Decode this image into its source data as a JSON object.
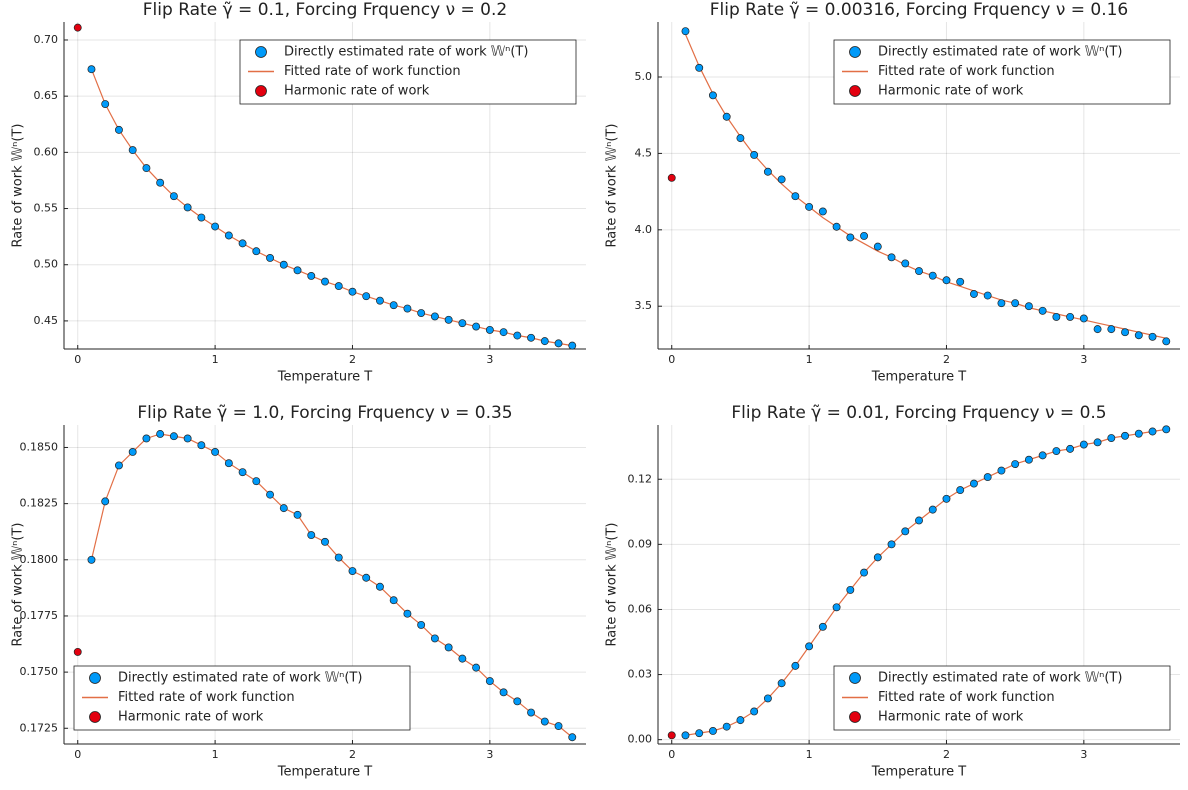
{
  "chart_data": [
    {
      "type": "scatter",
      "title": "Flip Rate γ̃ = 0.1, Forcing Frquency ν = 0.2",
      "xlabel": "Temperature T",
      "ylabel": "Rate of work 𝕎ⁿ(T)",
      "x": [
        0.1,
        0.2,
        0.3,
        0.4,
        0.5,
        0.6,
        0.7,
        0.8,
        0.9,
        1.0,
        1.1,
        1.2,
        1.3,
        1.4,
        1.5,
        1.6,
        1.7,
        1.8,
        1.9,
        2.0,
        2.1,
        2.2,
        2.3,
        2.4,
        2.5,
        2.6,
        2.7,
        2.8,
        2.9,
        3.0,
        3.1,
        3.2,
        3.3,
        3.4,
        3.5,
        3.6
      ],
      "series": [
        {
          "name": "Directly estimated rate of work 𝕎ⁿ(T)",
          "type": "scatter",
          "color": "#009af9",
          "values": [
            0.674,
            0.643,
            0.62,
            0.602,
            0.586,
            0.573,
            0.561,
            0.551,
            0.542,
            0.534,
            0.526,
            0.519,
            0.512,
            0.506,
            0.5,
            0.495,
            0.49,
            0.485,
            0.481,
            0.476,
            0.472,
            0.468,
            0.464,
            0.461,
            0.457,
            0.454,
            0.451,
            0.448,
            0.445,
            0.442,
            0.44,
            0.437,
            0.435,
            0.432,
            0.43,
            0.428
          ]
        },
        {
          "name": "Fitted rate of work function",
          "type": "line",
          "color": "#e26f46",
          "values": [
            0.674,
            0.643,
            0.62,
            0.602,
            0.586,
            0.573,
            0.561,
            0.551,
            0.542,
            0.534,
            0.526,
            0.519,
            0.512,
            0.506,
            0.5,
            0.495,
            0.49,
            0.485,
            0.481,
            0.476,
            0.472,
            0.468,
            0.464,
            0.461,
            0.457,
            0.454,
            0.451,
            0.448,
            0.445,
            0.442,
            0.44,
            0.437,
            0.435,
            0.432,
            0.43,
            0.428
          ]
        },
        {
          "name": "Harmonic rate of work",
          "type": "scatter",
          "color": "#e3000f",
          "x": [
            0
          ],
          "values": [
            0.711
          ]
        }
      ],
      "xlim": [
        -0.1,
        3.7
      ],
      "xticks": [
        0,
        1,
        2,
        3
      ],
      "ylim": [
        0.425,
        0.716
      ],
      "yticks": [
        0.45,
        {
          "value": 0.5,
          "label": "0.50"
        },
        0.55,
        {
          "value": 0.6,
          "label": "0.60"
        },
        0.65,
        {
          "value": 0.7,
          "label": "0.70"
        }
      ],
      "grid": true,
      "legend": "top-right"
    },
    {
      "type": "scatter",
      "title": "Flip Rate γ̃ = 0.00316, Forcing Frquency ν = 0.16",
      "xlabel": "Temperature T",
      "ylabel": "Rate of work 𝕎ⁿ(T)",
      "x": [
        0.1,
        0.2,
        0.3,
        0.4,
        0.5,
        0.6,
        0.7,
        0.8,
        0.9,
        1.0,
        1.1,
        1.2,
        1.3,
        1.4,
        1.5,
        1.6,
        1.7,
        1.8,
        1.9,
        2.0,
        2.1,
        2.2,
        2.3,
        2.4,
        2.5,
        2.6,
        2.7,
        2.8,
        2.9,
        3.0,
        3.1,
        3.2,
        3.3,
        3.4,
        3.5,
        3.6
      ],
      "series": [
        {
          "name": "Directly estimated rate of work 𝕎ⁿ(T)",
          "type": "scatter",
          "color": "#009af9",
          "values": [
            5.3,
            5.06,
            4.88,
            4.74,
            4.6,
            4.49,
            4.38,
            4.33,
            4.22,
            4.15,
            4.12,
            4.02,
            3.95,
            3.96,
            3.89,
            3.82,
            3.78,
            3.73,
            3.7,
            3.67,
            3.66,
            3.58,
            3.57,
            3.52,
            3.52,
            3.5,
            3.47,
            3.43,
            3.43,
            3.42,
            3.35,
            3.35,
            3.33,
            3.31,
            3.3,
            3.27
          ]
        },
        {
          "name": "Fitted rate of work function",
          "type": "line",
          "color": "#e26f46",
          "values": [
            5.28,
            5.07,
            4.89,
            4.74,
            4.61,
            4.49,
            4.39,
            4.3,
            4.22,
            4.15,
            4.08,
            4.02,
            3.96,
            3.91,
            3.86,
            3.82,
            3.77,
            3.73,
            3.7,
            3.66,
            3.63,
            3.6,
            3.57,
            3.54,
            3.52,
            3.49,
            3.47,
            3.45,
            3.43,
            3.41,
            3.39,
            3.37,
            3.35,
            3.33,
            3.31,
            3.29
          ]
        },
        {
          "name": "Harmonic rate of work",
          "type": "scatter",
          "color": "#e3000f",
          "x": [
            0
          ],
          "values": [
            4.34
          ]
        }
      ],
      "xlim": [
        -0.1,
        3.7
      ],
      "xticks": [
        0,
        1,
        2,
        3
      ],
      "ylim": [
        3.22,
        5.36
      ],
      "yticks": [
        3.5,
        {
          "value": 4,
          "label": "4.0"
        },
        4.5,
        {
          "value": 5,
          "label": "5.0"
        }
      ],
      "grid": true,
      "legend": "top-right"
    },
    {
      "type": "scatter",
      "title": "Flip Rate γ̃ = 1.0, Forcing Frquency ν = 0.35",
      "xlabel": "Temperature T",
      "ylabel": "Rate of work 𝕎ⁿ(T)",
      "x": [
        0.1,
        0.2,
        0.3,
        0.4,
        0.5,
        0.6,
        0.7,
        0.8,
        0.9,
        1.0,
        1.1,
        1.2,
        1.3,
        1.4,
        1.5,
        1.6,
        1.7,
        1.8,
        1.9,
        2.0,
        2.1,
        2.2,
        2.3,
        2.4,
        2.5,
        2.6,
        2.7,
        2.8,
        2.9,
        3.0,
        3.1,
        3.2,
        3.3,
        3.4,
        3.5,
        3.6
      ],
      "series": [
        {
          "name": "Directly estimated rate of work 𝕎ⁿ(T)",
          "type": "scatter",
          "color": "#009af9",
          "values": [
            0.18,
            0.1826,
            0.1842,
            0.1848,
            0.1854,
            0.1856,
            0.1855,
            0.1854,
            0.1851,
            0.1848,
            0.1843,
            0.1839,
            0.1835,
            0.1829,
            0.1823,
            0.182,
            0.1811,
            0.1808,
            0.1801,
            0.1795,
            0.1792,
            0.1788,
            0.1782,
            0.1776,
            0.1771,
            0.1765,
            0.1761,
            0.1756,
            0.1752,
            0.1746,
            0.1741,
            0.1737,
            0.1732,
            0.1728,
            0.1726,
            0.1721
          ]
        },
        {
          "name": "Fitted rate of work function",
          "type": "line",
          "color": "#e26f46",
          "values": [
            0.18,
            0.1826,
            0.1842,
            0.1848,
            0.1854,
            0.1856,
            0.1855,
            0.1854,
            0.1851,
            0.1848,
            0.1843,
            0.1839,
            0.1835,
            0.1829,
            0.1823,
            0.182,
            0.1811,
            0.1808,
            0.1801,
            0.1795,
            0.1792,
            0.1788,
            0.1782,
            0.1776,
            0.1771,
            0.1765,
            0.1761,
            0.1756,
            0.1752,
            0.1746,
            0.1741,
            0.1737,
            0.1732,
            0.1728,
            0.1726,
            0.1721
          ]
        },
        {
          "name": "Harmonic rate of work",
          "type": "scatter",
          "color": "#e3000f",
          "x": [
            0
          ],
          "values": [
            0.1759
          ]
        }
      ],
      "xlim": [
        -0.1,
        3.7
      ],
      "xticks": [
        0,
        1,
        2,
        3
      ],
      "ylim": [
        0.1718,
        0.186
      ],
      "yticks": [
        0.1725,
        {
          "value": 0.175,
          "label": "0.1750"
        },
        0.1775,
        {
          "value": 0.18,
          "label": "0.1800"
        },
        0.1825,
        {
          "value": 0.185,
          "label": "0.1850"
        }
      ],
      "grid": true,
      "legend": "bottom-left"
    },
    {
      "type": "scatter",
      "title": "Flip Rate γ̃ = 0.01, Forcing Frquency ν = 0.5",
      "xlabel": "Temperature T",
      "ylabel": "Rate of work 𝕎ⁿ(T)",
      "x": [
        0.1,
        0.2,
        0.3,
        0.4,
        0.5,
        0.6,
        0.7,
        0.8,
        0.9,
        1.0,
        1.1,
        1.2,
        1.3,
        1.4,
        1.5,
        1.6,
        1.7,
        1.8,
        1.9,
        2.0,
        2.1,
        2.2,
        2.3,
        2.4,
        2.5,
        2.6,
        2.7,
        2.8,
        2.9,
        3.0,
        3.1,
        3.2,
        3.3,
        3.4,
        3.5,
        3.6
      ],
      "series": [
        {
          "name": "Directly estimated rate of work 𝕎ⁿ(T)",
          "type": "scatter",
          "color": "#009af9",
          "values": [
            0.002,
            0.003,
            0.004,
            0.006,
            0.009,
            0.013,
            0.019,
            0.026,
            0.034,
            0.043,
            0.052,
            0.061,
            0.069,
            0.077,
            0.084,
            0.09,
            0.096,
            0.101,
            0.106,
            0.111,
            0.115,
            0.118,
            0.121,
            0.124,
            0.127,
            0.129,
            0.131,
            0.133,
            0.134,
            0.136,
            0.137,
            0.139,
            0.14,
            0.141,
            0.142,
            0.143
          ]
        },
        {
          "name": "Fitted rate of work function",
          "type": "line",
          "color": "#e26f46",
          "values": [
            0.002,
            0.003,
            0.004,
            0.006,
            0.009,
            0.013,
            0.019,
            0.026,
            0.034,
            0.043,
            0.052,
            0.061,
            0.069,
            0.077,
            0.084,
            0.09,
            0.096,
            0.101,
            0.106,
            0.111,
            0.115,
            0.118,
            0.121,
            0.124,
            0.127,
            0.129,
            0.131,
            0.133,
            0.134,
            0.136,
            0.137,
            0.139,
            0.14,
            0.141,
            0.142,
            0.143
          ]
        },
        {
          "name": "Harmonic rate of work",
          "type": "scatter",
          "color": "#e3000f",
          "x": [
            0
          ],
          "values": [
            0.002
          ]
        }
      ],
      "xlim": [
        -0.1,
        3.7
      ],
      "xticks": [
        0,
        1,
        2,
        3
      ],
      "ylim": [
        -0.002,
        0.145
      ],
      "yticks": [
        {
          "value": 0,
          "label": "0.00"
        },
        0.03,
        0.06,
        0.09,
        0.12
      ],
      "grid": true,
      "legend": "bottom-right"
    }
  ]
}
